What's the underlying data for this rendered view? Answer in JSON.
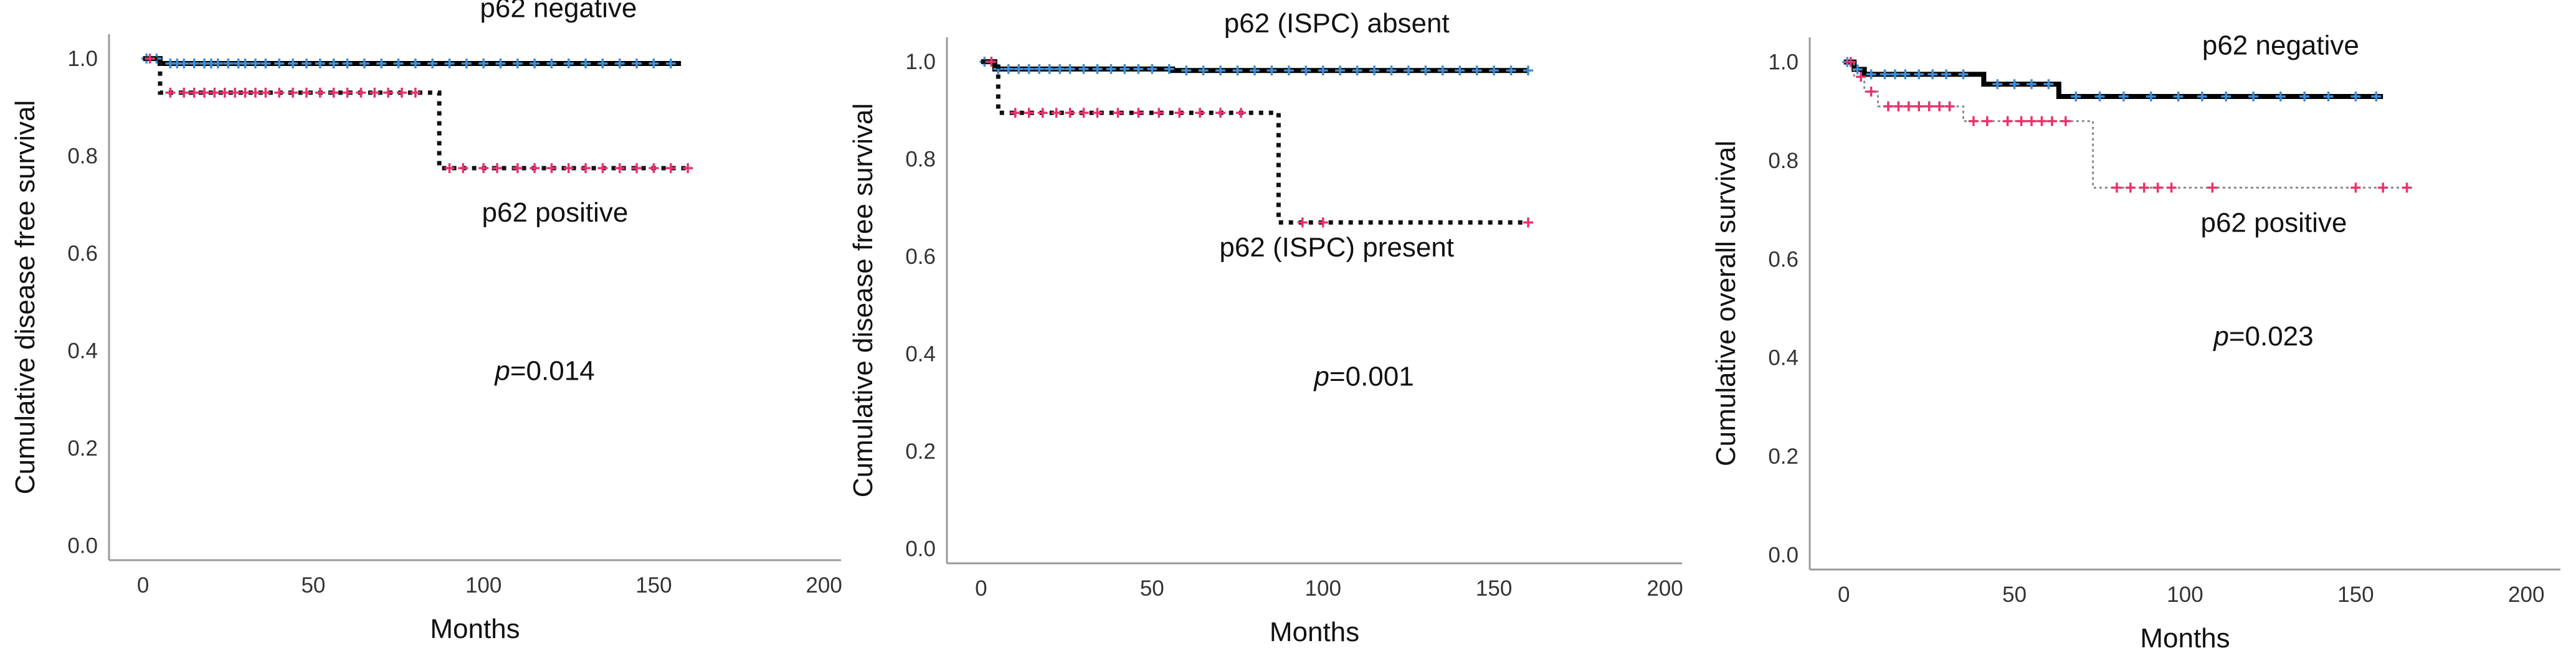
{
  "chart_data": [
    {
      "type": "line",
      "subtype": "kaplan-meier",
      "ylabel": "Cumulative disease free survival",
      "xlabel": "Months",
      "xlim": [
        -10,
        205
      ],
      "ylim": [
        -0.03,
        1.05
      ],
      "xticks": [
        0,
        50,
        100,
        150,
        200
      ],
      "yticks": [
        0.0,
        0.2,
        0.4,
        0.6,
        0.8,
        1.0
      ],
      "ytick_labels": [
        "0.0",
        "0.2",
        "0.4",
        "0.6",
        "0.8",
        "1.0"
      ],
      "grid": false,
      "series": [
        {
          "name": "p62 negative",
          "color": "#000000",
          "censor_color": "#3f8fd8",
          "style": "solid",
          "steps": [
            [
              0,
              1.0
            ],
            [
              5,
              0.99
            ],
            [
              158,
              0.99
            ]
          ],
          "censored": [
            1,
            4,
            8,
            10,
            12,
            15,
            18,
            20,
            22,
            25,
            28,
            30,
            33,
            36,
            40,
            44,
            48,
            52,
            56,
            60,
            65,
            70,
            75,
            80,
            85,
            90,
            95,
            100,
            105,
            110,
            115,
            120,
            125,
            130,
            135,
            140,
            145,
            150,
            155
          ]
        },
        {
          "name": "p62 positive",
          "color": "#111111",
          "censor_color": "#e8336a",
          "style": "dotted",
          "steps": [
            [
              0,
              1.0
            ],
            [
              5,
              0.93
            ],
            [
              86,
              0.93
            ],
            [
              87,
              0.775
            ],
            [
              160,
              0.775
            ]
          ],
          "censored": [
            2,
            8,
            12,
            15,
            18,
            21,
            24,
            27,
            30,
            33,
            36,
            40,
            44,
            48,
            52,
            56,
            60,
            64,
            68,
            72,
            76,
            80,
            90,
            94,
            100,
            104,
            110,
            115,
            120,
            125,
            130,
            135,
            140,
            145,
            150,
            155,
            160
          ]
        }
      ],
      "annotations": [
        {
          "text": "p62 negative",
          "x": 122,
          "y": 1.085
        },
        {
          "text": "p62 positive",
          "x": 121,
          "y": 0.665
        },
        {
          "text": "=0.014",
          "italic_prefix": "p",
          "x": 118,
          "y": 0.34
        }
      ]
    },
    {
      "type": "line",
      "subtype": "kaplan-meier",
      "ylabel": "Cumulative disease free survival",
      "xlabel": "Months",
      "xlim": [
        -10,
        205
      ],
      "ylim": [
        -0.03,
        1.05
      ],
      "xticks": [
        0,
        50,
        100,
        150,
        200
      ],
      "yticks": [
        0.0,
        0.2,
        0.4,
        0.6,
        0.8,
        1.0
      ],
      "ytick_labels": [
        "0.0",
        "0.2",
        "0.4",
        "0.6",
        "0.8",
        "1.0"
      ],
      "grid": false,
      "series": [
        {
          "name": "p62 (ISPC) absent",
          "color": "#000000",
          "censor_color": "#3f8fd8",
          "style": "solid",
          "steps": [
            [
              0,
              1.0
            ],
            [
              4,
              0.985
            ],
            [
              55,
              0.985
            ],
            [
              56,
              0.982
            ],
            [
              160,
              0.982
            ]
          ],
          "censored": [
            1,
            5,
            8,
            11,
            14,
            17,
            20,
            23,
            26,
            30,
            34,
            38,
            42,
            46,
            50,
            55,
            60,
            65,
            70,
            75,
            80,
            85,
            90,
            95,
            100,
            105,
            110,
            115,
            120,
            125,
            130,
            135,
            140,
            145,
            150,
            155,
            160
          ]
        },
        {
          "name": "p62 (ISPC) present",
          "color": "#111111",
          "censor_color": "#e8336a",
          "style": "dotted",
          "steps": [
            [
              0,
              1.0
            ],
            [
              5,
              0.895
            ],
            [
              86,
              0.895
            ],
            [
              87,
              0.67
            ],
            [
              160,
              0.67
            ]
          ],
          "censored": [
            3,
            10,
            14,
            18,
            22,
            26,
            30,
            34,
            40,
            46,
            52,
            58,
            64,
            70,
            76,
            94,
            100,
            160
          ]
        }
      ],
      "annotations": [
        {
          "text": "p62 (ISPC) absent",
          "x": 104,
          "y": 1.06
        },
        {
          "text": "p62 (ISPC) present",
          "x": 104,
          "y": 0.6
        },
        {
          "text": "=0.001",
          "italic_prefix": "p",
          "x": 112,
          "y": 0.335
        }
      ]
    },
    {
      "type": "line",
      "subtype": "kaplan-meier",
      "ylabel": "Cumulative overall survival",
      "xlabel": "Months",
      "xlim": [
        -10,
        210
      ],
      "ylim": [
        -0.03,
        1.05
      ],
      "xticks": [
        0,
        50,
        100,
        150,
        200
      ],
      "yticks": [
        0.0,
        0.2,
        0.4,
        0.6,
        0.8,
        1.0
      ],
      "ytick_labels": [
        "0.0",
        "0.2",
        "0.4",
        "0.6",
        "0.8",
        "1.0"
      ],
      "grid": false,
      "series": [
        {
          "name": "p62 negative",
          "color": "#000000",
          "censor_color": "#3f8fd8",
          "style": "solid",
          "steps": [
            [
              0,
              1.0
            ],
            [
              3,
              0.985
            ],
            [
              6,
              0.975
            ],
            [
              40,
              0.975
            ],
            [
              41,
              0.955
            ],
            [
              62,
              0.955
            ],
            [
              63,
              0.93
            ],
            [
              158,
              0.93
            ]
          ],
          "censored": [
            1,
            4,
            8,
            12,
            15,
            18,
            22,
            26,
            30,
            35,
            45,
            50,
            55,
            60,
            68,
            75,
            82,
            90,
            98,
            105,
            112,
            120,
            128,
            135,
            142,
            150,
            156
          ]
        },
        {
          "name": "p62 positive",
          "color": "#888888",
          "censor_color": "#e8336a",
          "style": "dotted",
          "steps": [
            [
              0,
              1.0
            ],
            [
              3,
              0.97
            ],
            [
              6,
              0.94
            ],
            [
              10,
              0.91
            ],
            [
              34,
              0.91
            ],
            [
              35,
              0.88
            ],
            [
              72,
              0.88
            ],
            [
              73,
              0.745
            ],
            [
              166,
              0.745
            ]
          ],
          "censored": [
            2,
            5,
            8,
            13,
            16,
            19,
            22,
            25,
            28,
            31,
            38,
            42,
            48,
            52,
            55,
            58,
            61,
            65,
            80,
            84,
            88,
            92,
            96,
            108,
            150,
            158,
            165
          ]
        }
      ],
      "annotations": [
        {
          "text": "p62 negative",
          "x": 128,
          "y": 1.015
        },
        {
          "text": "p62 positive",
          "x": 126,
          "y": 0.655
        },
        {
          "text": "=0.023",
          "italic_prefix": "p",
          "x": 123,
          "y": 0.425
        }
      ]
    }
  ]
}
